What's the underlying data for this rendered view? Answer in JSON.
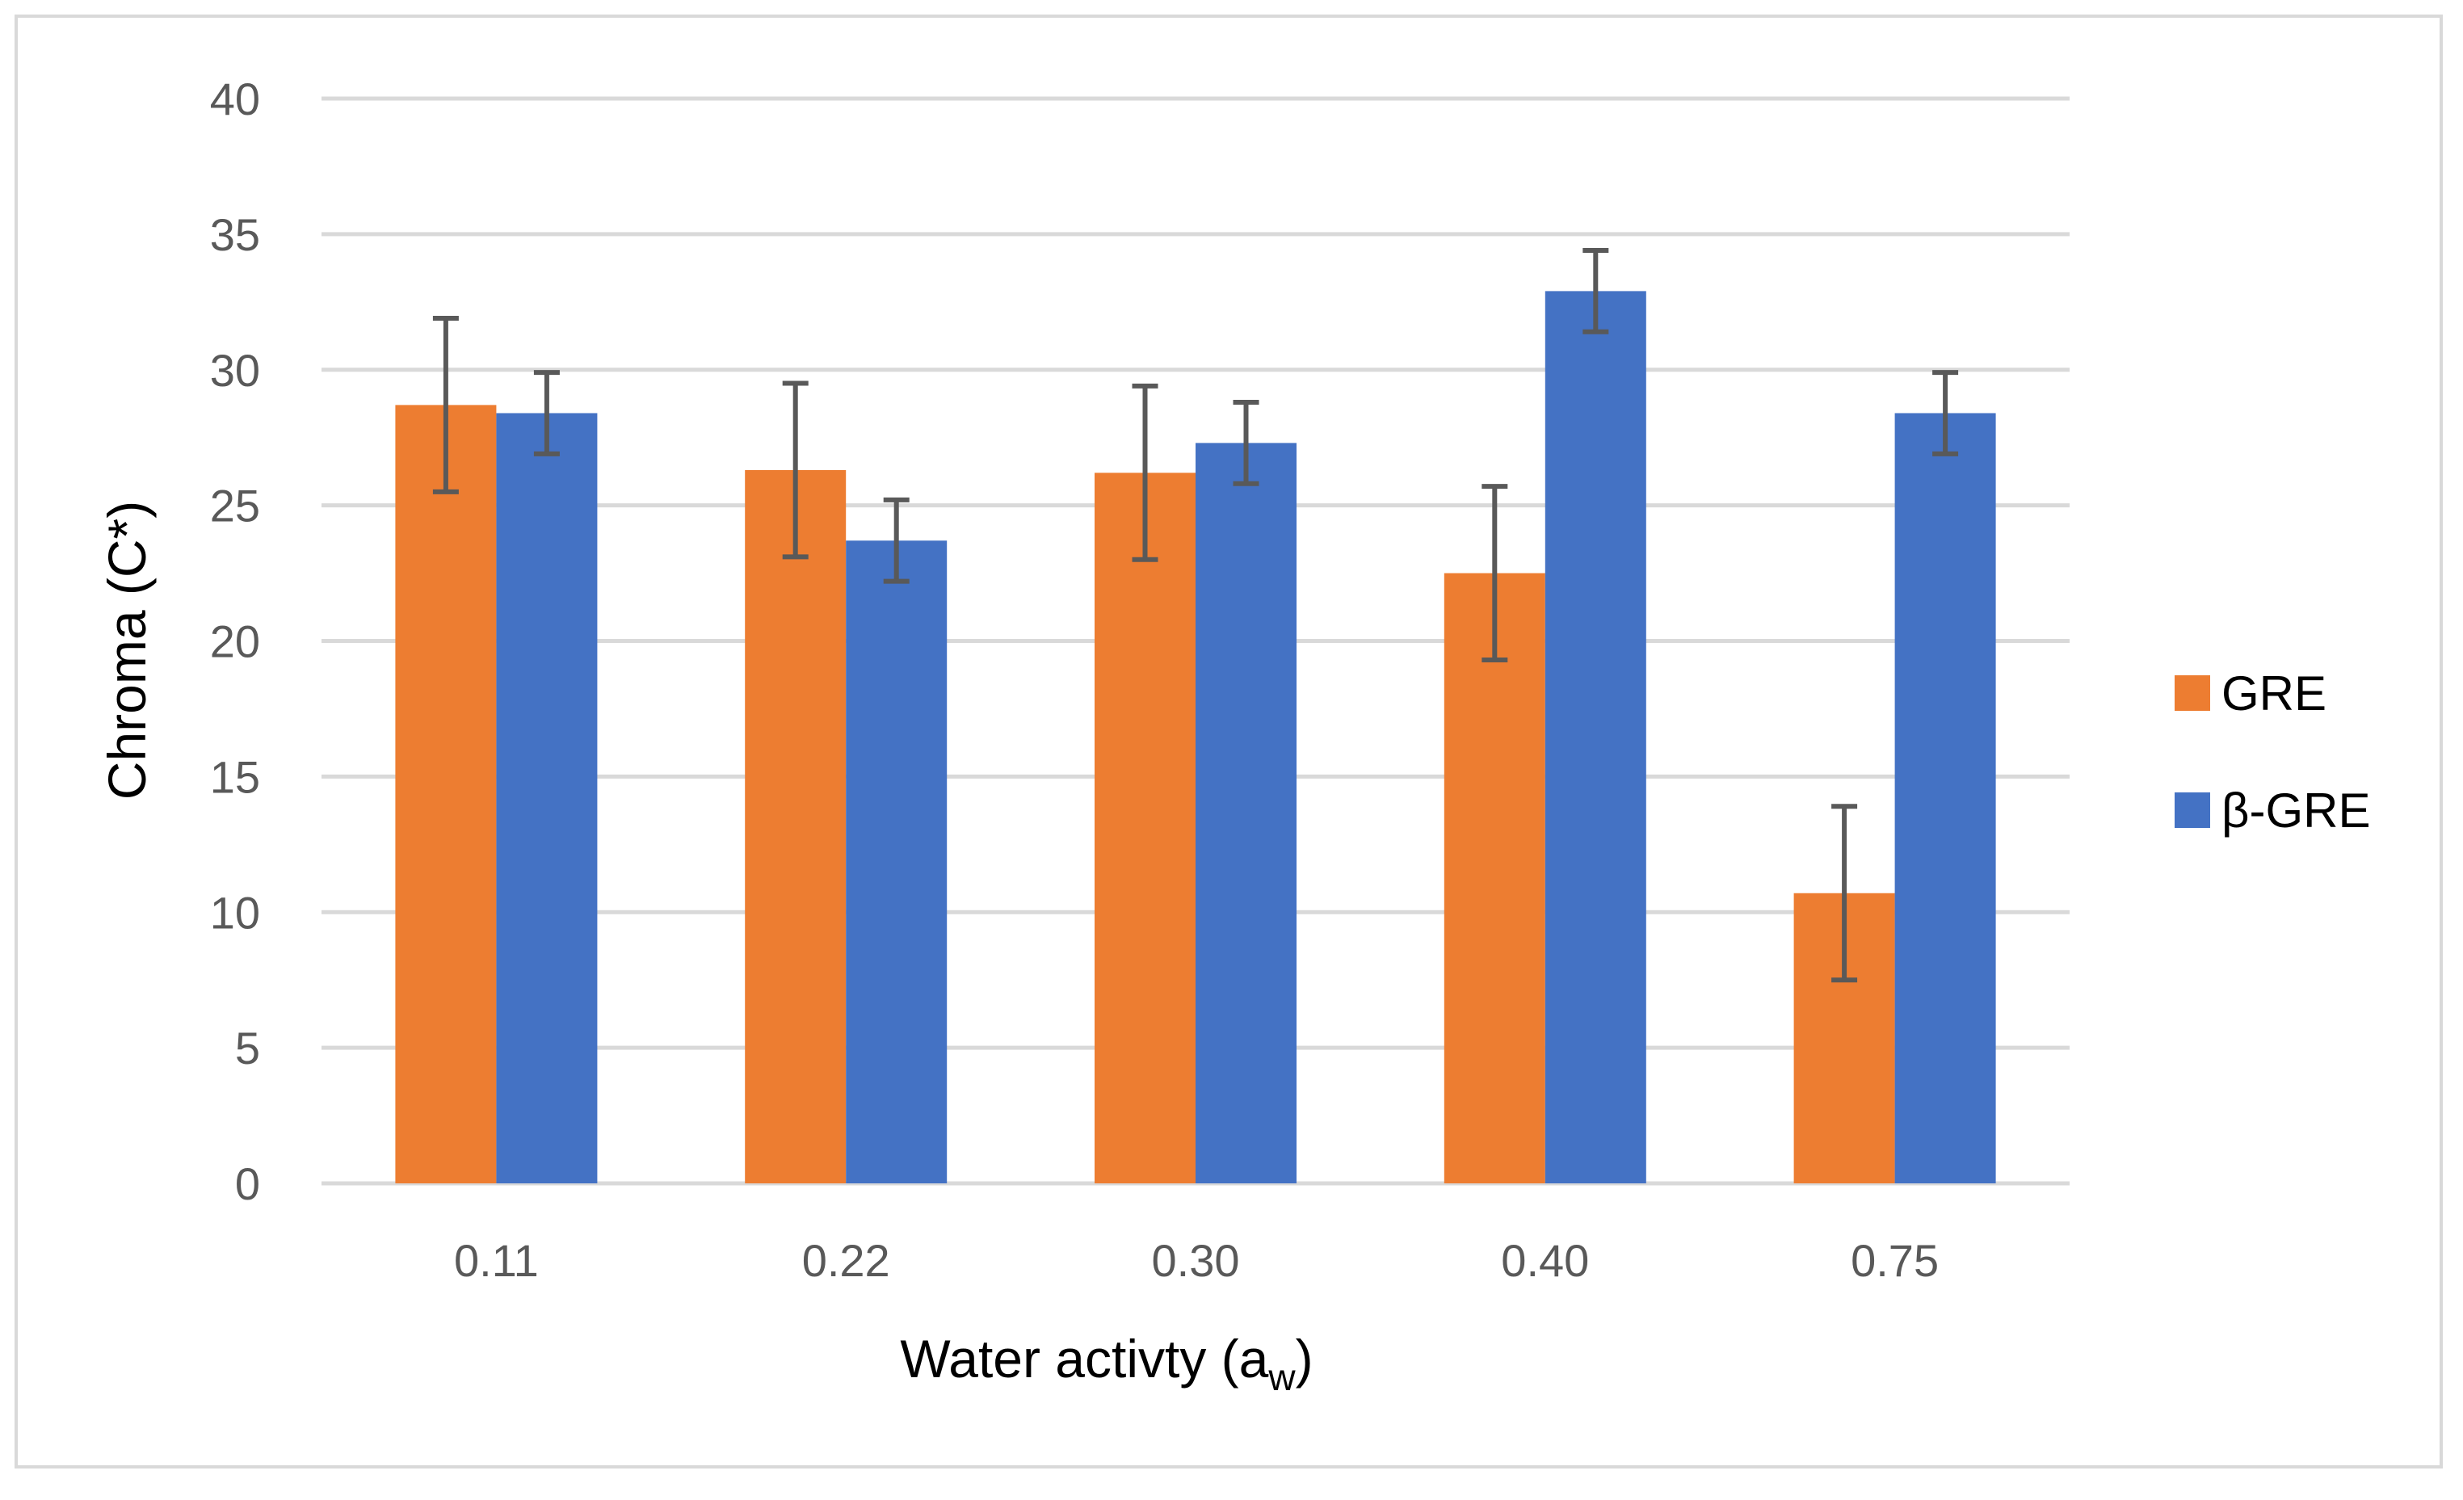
{
  "chart_data": {
    "type": "bar",
    "title": "",
    "xlabel": "Water activty (a",
    "xlabel_sub": "w",
    "xlabel_end": ")",
    "ylabel": "Chroma (C*)",
    "ylim": [
      0,
      40
    ],
    "yticks": [
      0,
      5,
      10,
      15,
      20,
      25,
      30,
      35,
      40
    ],
    "categories": [
      "0.11",
      "0.22",
      "0.30",
      "0.40",
      "0.75"
    ],
    "series": [
      {
        "name": "GRE",
        "color": "#ed7d31",
        "values": [
          28.7,
          26.3,
          26.2,
          22.5,
          10.7
        ],
        "errors": [
          3.2,
          3.2,
          3.2,
          3.2,
          3.2
        ]
      },
      {
        "name": "β-GRE",
        "color": "#4472c4",
        "values": [
          28.4,
          23.7,
          27.3,
          32.9,
          28.4
        ],
        "errors": [
          1.5,
          1.5,
          1.5,
          1.5,
          1.5
        ]
      }
    ],
    "grid": true,
    "legend_position": "right"
  }
}
